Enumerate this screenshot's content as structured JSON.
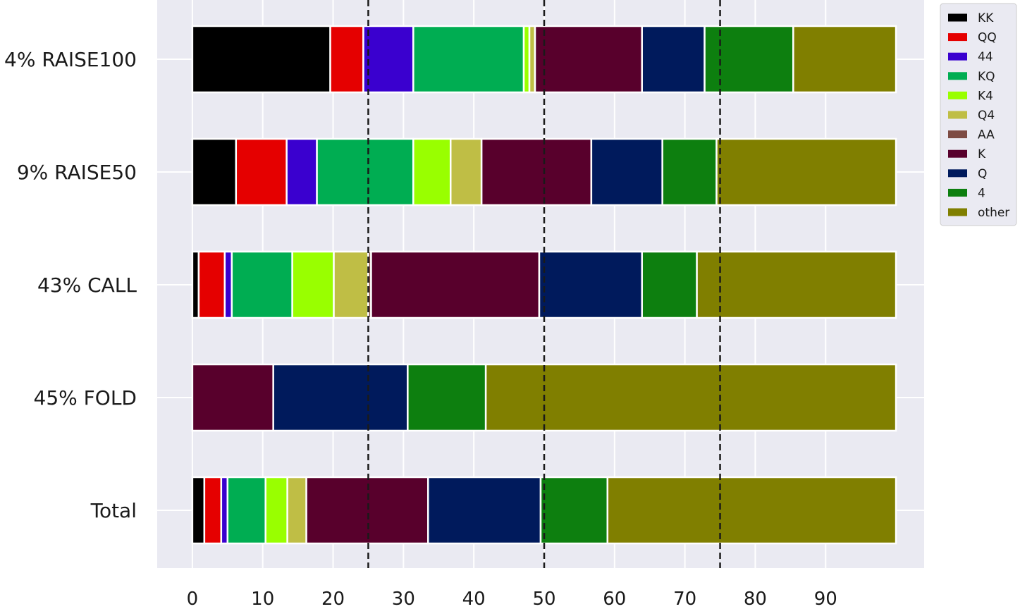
{
  "chart_data": {
    "type": "bar",
    "orientation": "horizontal",
    "stacked": true,
    "categories": [
      "4% RAISE100",
      "9% RAISE50",
      "43% CALL",
      "45% FOLD",
      "Total"
    ],
    "xlim": [
      -5,
      104
    ],
    "xticks": [
      0,
      10,
      20,
      30,
      40,
      50,
      60,
      70,
      80,
      90
    ],
    "grid": true,
    "legend_position": "outside-top-right",
    "reference_lines": [
      25,
      50,
      75
    ],
    "series": [
      {
        "name": "KK",
        "color": "#000000",
        "values": [
          19.6,
          6.2,
          0.9,
          0.0,
          1.7
        ]
      },
      {
        "name": "QQ",
        "color": "#e50000",
        "values": [
          4.7,
          7.2,
          3.7,
          0.0,
          2.4
        ]
      },
      {
        "name": "44",
        "color": "#3a00cf",
        "values": [
          7.1,
          4.3,
          1.0,
          0.0,
          0.9
        ]
      },
      {
        "name": "KQ",
        "color": "#00ad52",
        "values": [
          15.7,
          13.7,
          8.6,
          0.0,
          5.4
        ]
      },
      {
        "name": "K4",
        "color": "#99ff00",
        "values": [
          0.8,
          5.3,
          5.9,
          0.0,
          3.1
        ]
      },
      {
        "name": "Q4",
        "color": "#bfbe45",
        "values": [
          0.8,
          4.4,
          4.9,
          0.0,
          2.7
        ]
      },
      {
        "name": "AA",
        "color": "#7d4b43",
        "values": [
          0.0,
          0.0,
          0.4,
          0.0,
          0.0
        ]
      },
      {
        "name": "K",
        "color": "#58002c",
        "values": [
          15.2,
          15.6,
          23.9,
          11.5,
          17.3
        ]
      },
      {
        "name": "Q",
        "color": "#001a5c",
        "values": [
          8.9,
          10.1,
          14.6,
          19.1,
          16.0
        ]
      },
      {
        "name": "4",
        "color": "#0d7f0f",
        "values": [
          12.6,
          7.7,
          7.8,
          11.1,
          9.5
        ]
      },
      {
        "name": "other",
        "color": "#807f00",
        "values": [
          14.6,
          25.5,
          28.3,
          58.3,
          41.0
        ]
      }
    ]
  }
}
